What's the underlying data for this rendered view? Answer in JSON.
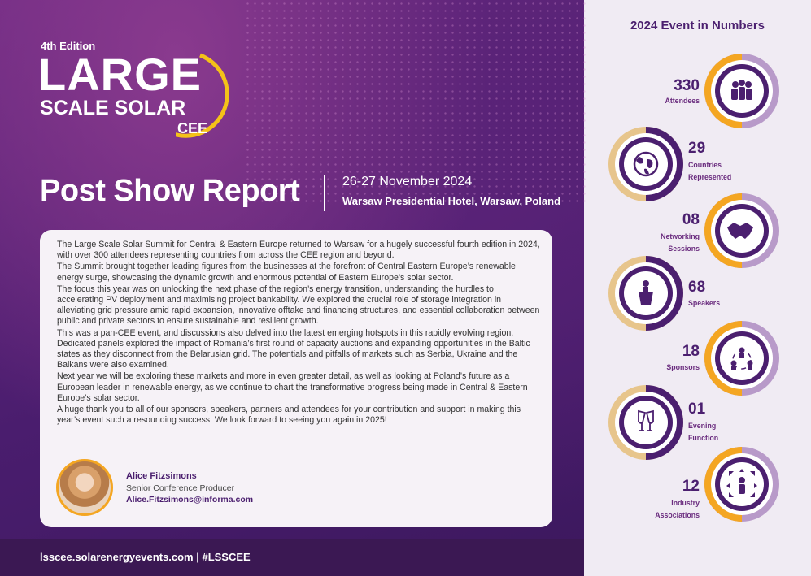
{
  "header": {
    "edition": "4th Edition",
    "logo_line1": "LARGE",
    "logo_line2": "SCALE SOLAR",
    "logo_line3": "CEE",
    "title": "Post Show Report",
    "date": "26-27 November 2024",
    "venue": "Warsaw Presidential Hotel, Warsaw, Poland"
  },
  "body": {
    "paragraphs": [
      "The Large Scale Solar Summit for Central & Eastern Europe returned to Warsaw for a hugely successful fourth edition in 2024, with over 300 attendees representing countries from across the CEE region and beyond.",
      "The Summit brought together leading figures from the businesses at the forefront of Central Eastern Europe’s renewable energy surge, showcasing the dynamic growth and enormous potential of Eastern Europe’s solar sector.",
      "The focus this year was on unlocking the next phase of the region’s energy transition, understanding the hurdles to accelerating PV deployment and maximising project bankability. We explored the crucial role of storage integration in alleviating grid pressure amid rapid expansion, innovative offtake and financing structures, and essential collaboration between public and private sectors to ensure sustainable and resilient growth.",
      "This was a pan-CEE event, and discussions also delved into the latest emerging hotspots in this rapidly evolving region. Dedicated panels explored the impact of Romania’s first round of capacity auctions and expanding opportunities in the Baltic states as they disconnect from the Belarusian grid. The potentials and pitfalls of markets such as Serbia, Ukraine and the Balkans were also examined.",
      "Next year we will be exploring these markets and more in even greater detail, as well as looking at Poland’s future as a European leader in renewable energy, as we continue to chart the transformative progress being made in Central & Eastern Europe’s solar sector.",
      "A huge thank you to all of our sponsors, speakers, partners and attendees for your contribution and support in making this year’s event such a resounding success. We look forward to seeing you again in 2025!"
    ]
  },
  "signature": {
    "name": "Alice Fitzsimons",
    "role": "Senior Conference Producer",
    "email": "Alice.Fitzsimons@informa.com"
  },
  "footer": {
    "text": "lsscee.solarenergyevents.com | #LSSCEE"
  },
  "stats": {
    "title": "2024 Event in Numbers",
    "items": [
      {
        "value": "330",
        "label_lines": [
          "Attendees"
        ],
        "icon": "people-icon"
      },
      {
        "value": "29",
        "label_lines": [
          "Countries",
          "Represented"
        ],
        "icon": "globe-icon"
      },
      {
        "value": "08",
        "label_lines": [
          "Networking",
          "Sessions"
        ],
        "icon": "handshake-icon"
      },
      {
        "value": "68",
        "label_lines": [
          "Speakers"
        ],
        "icon": "speaker-podium-icon"
      },
      {
        "value": "18",
        "label_lines": [
          "Sponsors"
        ],
        "icon": "network-people-icon"
      },
      {
        "value": "01",
        "label_lines": [
          "Evening",
          "Function"
        ],
        "icon": "champagne-icon"
      },
      {
        "value": "12",
        "label_lines": [
          "Industry",
          "Associations"
        ],
        "icon": "expand-person-icon"
      }
    ]
  },
  "colors": {
    "purple": "#4b1f6f",
    "orange": "#f4a622",
    "lavender": "#b89ac9"
  }
}
